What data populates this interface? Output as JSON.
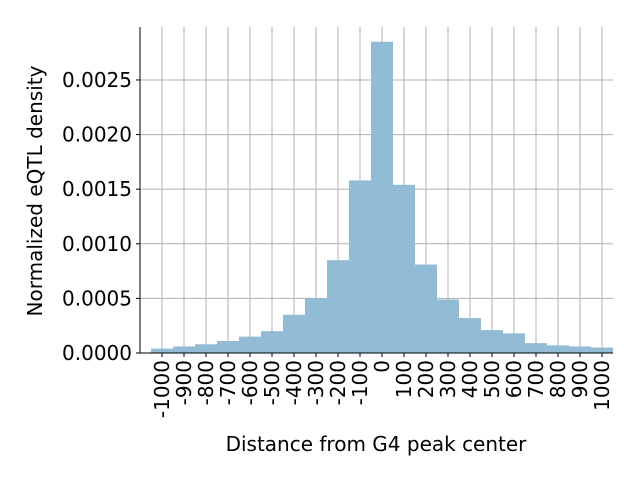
{
  "chart_data": {
    "type": "bar",
    "title": "",
    "xlabel": "Distance from G4 peak center",
    "ylabel": "Normalized eQTL density",
    "bin_edges": [
      -1000,
      -900,
      -800,
      -700,
      -600,
      -500,
      -400,
      -300,
      -200,
      -100,
      0,
      100,
      200,
      300,
      400,
      500,
      600,
      700,
      800,
      900,
      1000
    ],
    "bin_width": 100,
    "values": [
      4e-05,
      6e-05,
      8e-05,
      0.00011,
      0.00015,
      0.0002,
      0.00035,
      0.0005,
      0.00085,
      0.00158,
      0.00285,
      0.00154,
      0.00081,
      0.00049,
      0.00032,
      0.00021,
      0.00018,
      9e-05,
      7e-05,
      6e-05,
      5e-05
    ],
    "x_ticks": [
      -1000,
      -900,
      -800,
      -700,
      -600,
      -500,
      -400,
      -300,
      -200,
      -100,
      0,
      100,
      200,
      300,
      400,
      500,
      600,
      700,
      800,
      900,
      1000
    ],
    "x_tick_labels": [
      "-1000",
      "-900",
      "-800",
      "-700",
      "-600",
      "-500",
      "-400",
      "-300",
      "-200",
      "-100",
      "0",
      "100",
      "200",
      "300",
      "400",
      "500",
      "600",
      "700",
      "800",
      "900",
      "1000"
    ],
    "y_ticks": [
      0,
      0.0005,
      0.001,
      0.0015,
      0.002,
      0.0025
    ],
    "y_tick_labels": [
      "0.0000",
      "0.0005",
      "0.0010",
      "0.0015",
      "0.0020",
      "0.0025"
    ],
    "xlim": [
      -1100,
      1050
    ],
    "ylim": [
      0,
      0.002985
    ],
    "grid": true,
    "legend": "none",
    "colors": {
      "bar": "#92bbd6",
      "grid": "#b0b0b0",
      "axis": "#000000"
    }
  }
}
